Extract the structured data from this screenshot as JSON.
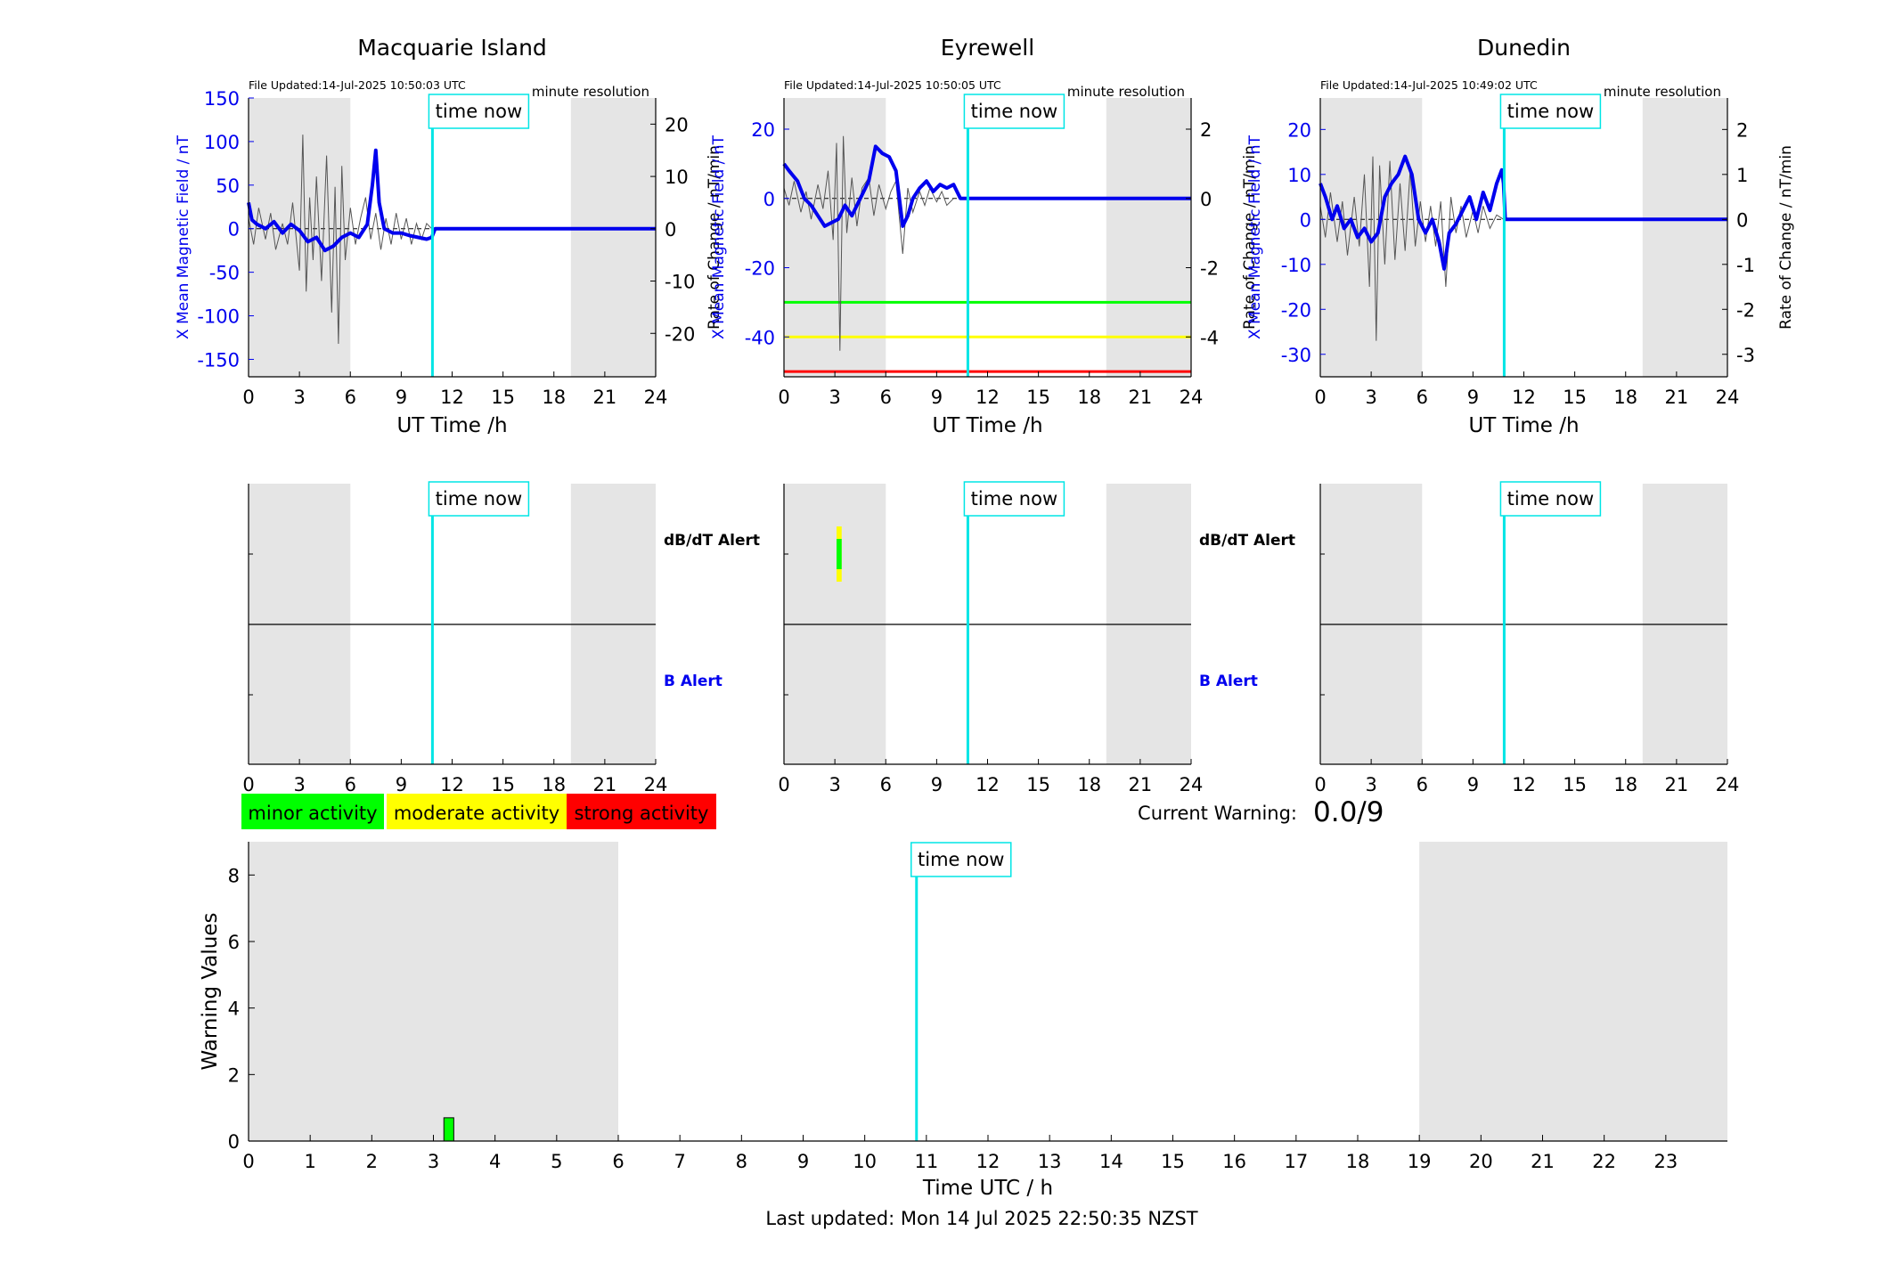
{
  "colors": {
    "shade": "#e5e5e5",
    "time_now": "#00e5e5",
    "x_mean": "#0000ee",
    "rate": "#555555",
    "axis_blue": "#0000ee",
    "minor": "#00ff00",
    "moderate": "#ffff00",
    "strong": "#ff0000"
  },
  "time_now_label": "time now",
  "time_now_hour": 10.84,
  "night_shading_hours": [
    [
      0,
      6
    ],
    [
      19,
      24
    ]
  ],
  "stations": [
    {
      "id": "macquarie",
      "title": "Macquarie Island",
      "file_updated": "File Updated:14-Jul-2025 10:50:03 UTC",
      "resolution": "minute resolution",
      "ylabel_left": "X Mean Magnetic Field / nT",
      "ylabel_right": "Rate of Change / nT/min",
      "xlabel": "UT Time /h",
      "ylim_left": [
        -170,
        150
      ],
      "yticks_left": [
        150,
        100,
        50,
        0,
        -50,
        -100,
        -150
      ],
      "ylim_right": [
        -28.3,
        25
      ],
      "yticks_right": [
        20,
        10,
        0,
        -10,
        -20
      ],
      "xticks": [
        0,
        3,
        6,
        9,
        12,
        15,
        18,
        21,
        24
      ],
      "thresholds": [],
      "x_mean_series": {
        "x": [
          0,
          0.2,
          0.5,
          1.0,
          1.5,
          2.0,
          2.5,
          3.0,
          3.5,
          4.0,
          4.5,
          5.0,
          5.5,
          6.0,
          6.5,
          7.0,
          7.3,
          7.5,
          7.7,
          8.0,
          8.5,
          9.0,
          9.5,
          10.0,
          10.5,
          10.8,
          11,
          24
        ],
        "y": [
          30,
          10,
          5,
          0,
          8,
          -5,
          5,
          -2,
          -15,
          -10,
          -25,
          -20,
          -10,
          -5,
          -10,
          5,
          50,
          90,
          30,
          0,
          -5,
          -5,
          -8,
          -10,
          -12,
          -10,
          0,
          0
        ]
      },
      "rate_series": {
        "x": [
          0,
          0.3,
          0.6,
          1.0,
          1.3,
          1.6,
          2.0,
          2.3,
          2.6,
          3.0,
          3.2,
          3.4,
          3.6,
          3.8,
          4.0,
          4.3,
          4.6,
          4.9,
          5.1,
          5.3,
          5.5,
          5.7,
          6.0,
          6.3,
          6.6,
          6.9,
          7.2,
          7.5,
          7.8,
          8.1,
          8.4,
          8.7,
          9.0,
          9.3,
          9.6,
          9.9,
          10.2,
          10.5,
          10.8
        ],
        "y": [
          2,
          -3,
          4,
          -2,
          3,
          -4,
          1,
          -3,
          5,
          -8,
          18,
          -12,
          6,
          -6,
          10,
          -10,
          14,
          -16,
          8,
          -22,
          12,
          -6,
          4,
          -3,
          2,
          6,
          -2,
          3,
          -4,
          2,
          -3,
          3,
          -2,
          2,
          -3,
          1,
          -2,
          1,
          0
        ]
      },
      "db_dt_alerts": [],
      "b_alerts": []
    },
    {
      "id": "eyrewell",
      "title": "Eyrewell",
      "file_updated": "File Updated:14-Jul-2025 10:50:05 UTC",
      "resolution": "minute resolution",
      "ylabel_left": "X Mean Magnetic Field / nT",
      "ylabel_right": "Rate of Change / nT/min",
      "xlabel": "UT Time /h",
      "ylim_left": [
        -51.5,
        29
      ],
      "yticks_left": [
        20,
        0,
        -20,
        -40
      ],
      "ylim_right": [
        -5.15,
        2.9
      ],
      "yticks_right": [
        2,
        0,
        -2,
        -4
      ],
      "xticks": [
        0,
        3,
        6,
        9,
        12,
        15,
        18,
        21,
        24
      ],
      "thresholds": [
        {
          "level": "minor",
          "value": -30
        },
        {
          "level": "moderate",
          "value": -40
        },
        {
          "level": "strong",
          "value": -50
        }
      ],
      "x_mean_series": {
        "x": [
          0,
          0.3,
          0.8,
          1.2,
          1.6,
          2.0,
          2.4,
          2.8,
          3.2,
          3.6,
          4.0,
          4.5,
          5.0,
          5.4,
          5.8,
          6.2,
          6.6,
          7.0,
          7.3,
          7.6,
          8.0,
          8.4,
          8.8,
          9.2,
          9.6,
          10.0,
          10.4,
          10.8,
          11,
          24
        ],
        "y": [
          10,
          8,
          5,
          0,
          -2,
          -5,
          -8,
          -7,
          -6,
          -2,
          -5,
          0,
          5,
          15,
          13,
          12,
          8,
          -8,
          -5,
          0,
          3,
          5,
          2,
          4,
          3,
          4,
          0,
          0,
          0,
          0
        ]
      },
      "rate_series": {
        "x": [
          0,
          0.3,
          0.6,
          1.0,
          1.3,
          1.6,
          2.0,
          2.3,
          2.6,
          2.9,
          3.1,
          3.3,
          3.5,
          3.7,
          4.0,
          4.3,
          4.6,
          5.0,
          5.3,
          5.6,
          6.0,
          6.3,
          6.6,
          7.0,
          7.3,
          7.6,
          8.0,
          8.3,
          8.6,
          9.0,
          9.3,
          9.6,
          10.0
        ],
        "y": [
          0.3,
          -0.2,
          0.5,
          -0.4,
          0.2,
          -0.6,
          0.4,
          -0.3,
          0.8,
          -1.2,
          1.6,
          -4.4,
          1.8,
          -1.0,
          0.6,
          -0.8,
          0.3,
          0.6,
          -0.5,
          0.4,
          -0.3,
          0.2,
          0.5,
          -1.6,
          0.3,
          -0.4,
          0.2,
          -0.2,
          0.3,
          -0.1,
          0.2,
          -0.2,
          0
        ]
      },
      "db_dt_alerts": [
        {
          "start": 3.1,
          "end": 3.4,
          "level": "moderate",
          "stack": 0
        },
        {
          "start": 3.1,
          "end": 3.4,
          "level": "minor",
          "stack": 1
        }
      ],
      "b_alerts": []
    },
    {
      "id": "dunedin",
      "title": "Dunedin",
      "file_updated": "File Updated:14-Jul-2025 10:49:02 UTC",
      "resolution": "minute resolution",
      "ylabel_left": "X Mean Magnetic Field / nT",
      "ylabel_right": "Rate of Change / nT/min",
      "xlabel": "UT Time /h",
      "ylim_left": [
        -35,
        27
      ],
      "yticks_left": [
        20,
        10,
        0,
        -10,
        -20,
        -30
      ],
      "ylim_right": [
        -3.5,
        2.7
      ],
      "yticks_right": [
        2,
        1,
        0,
        -1,
        -2,
        -3
      ],
      "xticks": [
        0,
        3,
        6,
        9,
        12,
        15,
        18,
        21,
        24
      ],
      "thresholds": [],
      "x_mean_series": {
        "x": [
          0,
          0.3,
          0.7,
          1.0,
          1.4,
          1.8,
          2.2,
          2.6,
          3.0,
          3.4,
          3.8,
          4.2,
          4.6,
          5.0,
          5.4,
          5.8,
          6.2,
          6.6,
          7.0,
          7.3,
          7.6,
          8.0,
          8.4,
          8.8,
          9.2,
          9.6,
          10.0,
          10.4,
          10.7,
          10.8,
          10.9,
          24
        ],
        "y": [
          8,
          5,
          0,
          3,
          -2,
          0,
          -4,
          -2,
          -5,
          -3,
          5,
          8,
          10,
          14,
          10,
          0,
          -3,
          0,
          -5,
          -11,
          -3,
          -1,
          2,
          5,
          0,
          6,
          2,
          8,
          11,
          8,
          0,
          0
        ]
      },
      "rate_series": {
        "x": [
          0,
          0.3,
          0.6,
          1.0,
          1.3,
          1.6,
          2.0,
          2.3,
          2.6,
          2.9,
          3.1,
          3.3,
          3.5,
          3.8,
          4.1,
          4.4,
          4.7,
          5.0,
          5.3,
          5.6,
          5.9,
          6.2,
          6.5,
          6.8,
          7.1,
          7.4,
          7.7,
          8.0,
          8.3,
          8.6,
          9.0,
          9.3,
          9.6,
          10.0,
          10.4,
          10.8
        ],
        "y": [
          0.3,
          -0.4,
          0.6,
          -0.5,
          0.4,
          -0.8,
          0.5,
          -0.6,
          1.0,
          -1.5,
          1.4,
          -2.7,
          1.2,
          -1.0,
          1.3,
          -0.9,
          0.8,
          -0.7,
          1.1,
          -0.6,
          0.4,
          -0.5,
          0.3,
          -0.6,
          0.4,
          -1.5,
          0.5,
          -0.3,
          0.3,
          -0.4,
          0.2,
          -0.3,
          0.3,
          -0.2,
          0.1,
          0
        ]
      },
      "db_dt_alerts": [],
      "b_alerts": []
    }
  ],
  "alert_panel": {
    "db_dt_label": "dB/dT Alert",
    "b_label": "B Alert",
    "xticks": [
      0,
      3,
      6,
      9,
      12,
      15,
      18,
      21,
      24
    ]
  },
  "legend": {
    "minor": "minor activity",
    "moderate": "moderate activity",
    "strong": "strong activity"
  },
  "current_warning": {
    "label": "Current Warning:",
    "value": "0.0/9"
  },
  "warning_chart": {
    "ylabel": "Warning Values",
    "xlabel": "Time UTC / h",
    "ylim": [
      0,
      9
    ],
    "yticks": [
      0,
      2,
      4,
      6,
      8
    ],
    "xlim": [
      0,
      24
    ],
    "xticks": [
      0,
      1,
      2,
      3,
      4,
      5,
      6,
      7,
      8,
      9,
      10,
      11,
      12,
      13,
      14,
      15,
      16,
      17,
      18,
      19,
      20,
      21,
      22,
      23
    ],
    "bars": [
      {
        "start": 3.17,
        "end": 3.33,
        "value": 0.7,
        "level": "minor"
      }
    ]
  },
  "chart_data": {
    "type": "bar",
    "x": [
      3.25
    ],
    "values": [
      0.7
    ],
    "xlabel": "Time UTC / h",
    "ylabel": "Warning Values",
    "xlim": [
      0,
      24
    ],
    "ylim": [
      0,
      9
    ]
  },
  "last_updated": "Last updated: Mon 14 Jul 2025 22:50:35 NZST"
}
